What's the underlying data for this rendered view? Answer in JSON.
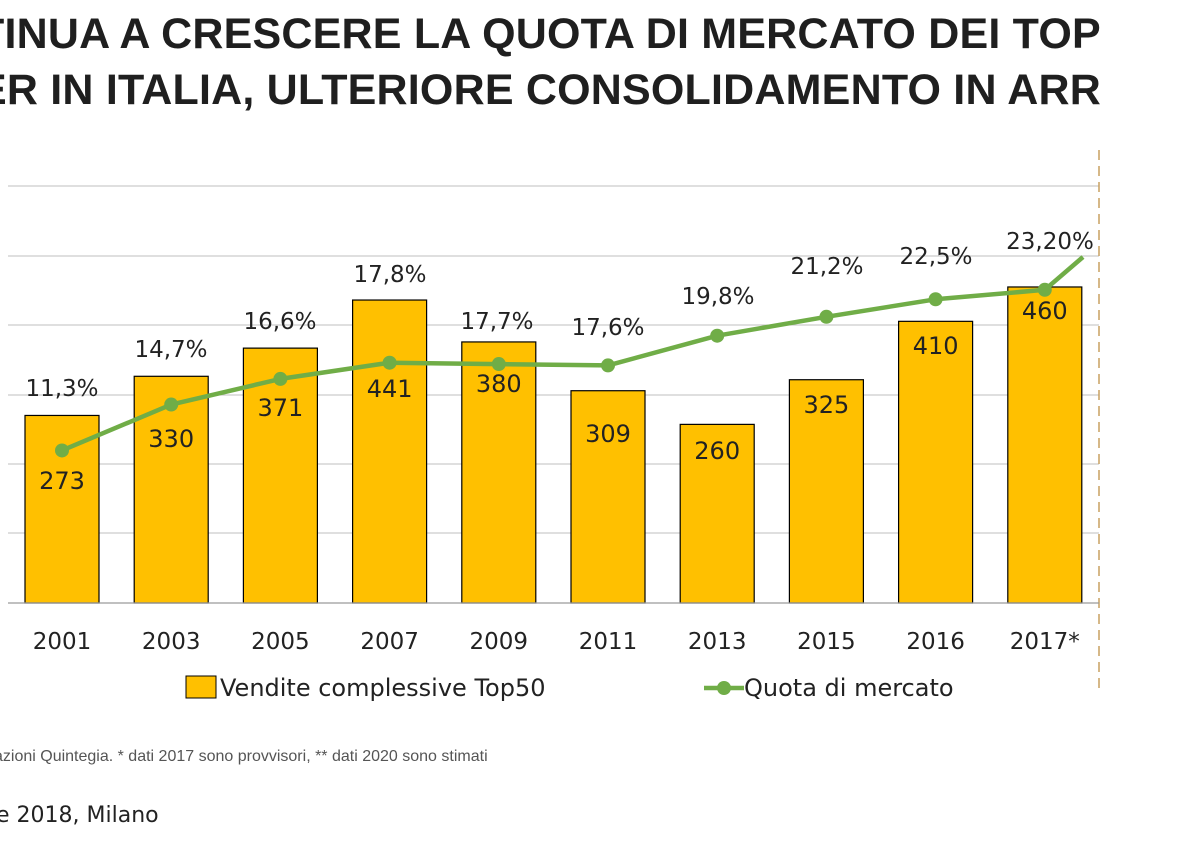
{
  "slide": {
    "title_line1": "TINUA A CRESCERE LA QUOTA DI MERCATO DEI TOP",
    "title_line2": "ER IN ITALIA, ULTERIORE CONSOLIDAMENTO IN ARR",
    "footnote": "azioni Quintegia. * dati 2017 sono provvisori, ** dati 2020 sono stimati",
    "source": "e 2018, Milano"
  },
  "colors": {
    "bar": "#FFC000",
    "bar_border": "#000000",
    "line": "#70AD47",
    "grid": "#bfbfbf",
    "dashed_line": "#c8a060"
  },
  "chart_data": {
    "type": "bar",
    "categories": [
      "2001",
      "2003",
      "2005",
      "2007",
      "2009",
      "2011",
      "2013",
      "2015",
      "2016",
      "2017*"
    ],
    "series": [
      {
        "name": "Vendite complessive Top50",
        "type": "bar",
        "values": [
          273,
          330,
          371,
          441,
          380,
          309,
          260,
          325,
          410,
          460
        ],
        "labels": [
          "273",
          "330",
          "371",
          "441",
          "380",
          "309",
          "260",
          "325",
          "410",
          "460"
        ]
      },
      {
        "name": "Quota di mercato",
        "type": "line",
        "values": [
          11.3,
          14.7,
          16.6,
          17.8,
          17.7,
          17.6,
          19.8,
          21.2,
          22.5,
          23.2
        ],
        "labels": [
          "11,3%",
          "14,7%",
          "16,6%",
          "17,8%",
          "17,7%",
          "17,6%",
          "19,8%",
          "21,2%",
          "22,5%",
          "23,20%"
        ]
      }
    ],
    "bar_axis_range": [
      0,
      600
    ],
    "line_axis_range": [
      0,
      31
    ],
    "grid": true,
    "legend_position": "bottom"
  }
}
